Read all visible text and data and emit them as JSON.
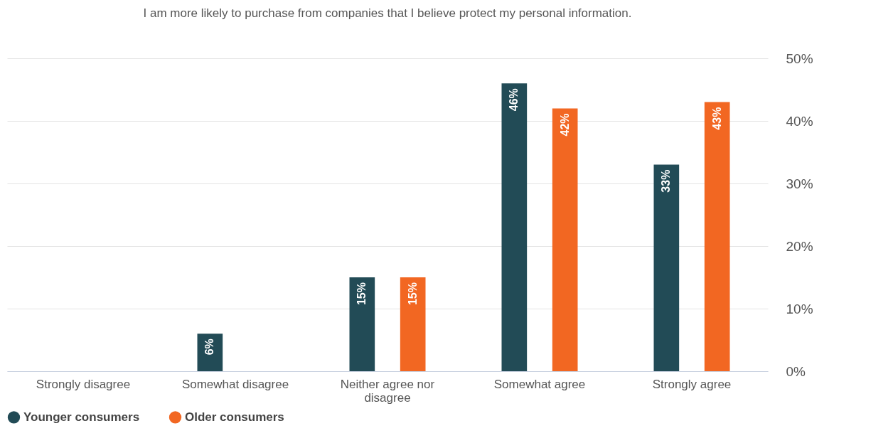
{
  "chart_data": {
    "type": "bar",
    "title": "I am more likely to purchase from companies that I believe protect my personal information.",
    "categories": [
      "Strongly disagree",
      "Somewhat disagree",
      "Neither agree nor disagree",
      "Somewhat agree",
      "Strongly agree"
    ],
    "series": [
      {
        "name": "Younger consumers",
        "color": "#224b56",
        "values": [
          null,
          6,
          15,
          46,
          33
        ],
        "value_labels": [
          null,
          "6%",
          "15%",
          "46%",
          "33%"
        ]
      },
      {
        "name": "Older consumers",
        "color": "#f26722",
        "values": [
          null,
          null,
          15,
          42,
          43
        ],
        "value_labels": [
          null,
          null,
          "15%",
          "42%",
          "43%"
        ]
      }
    ],
    "ylim": [
      0,
      50
    ],
    "yticks": [
      {
        "value": 0,
        "label": "0%"
      },
      {
        "value": 10,
        "label": "10%"
      },
      {
        "value": 20,
        "label": "20%"
      },
      {
        "value": 30,
        "label": "30%"
      },
      {
        "value": 40,
        "label": "40%"
      },
      {
        "value": 50,
        "label": "50%"
      }
    ],
    "grid": "y",
    "legend": "bottom"
  }
}
